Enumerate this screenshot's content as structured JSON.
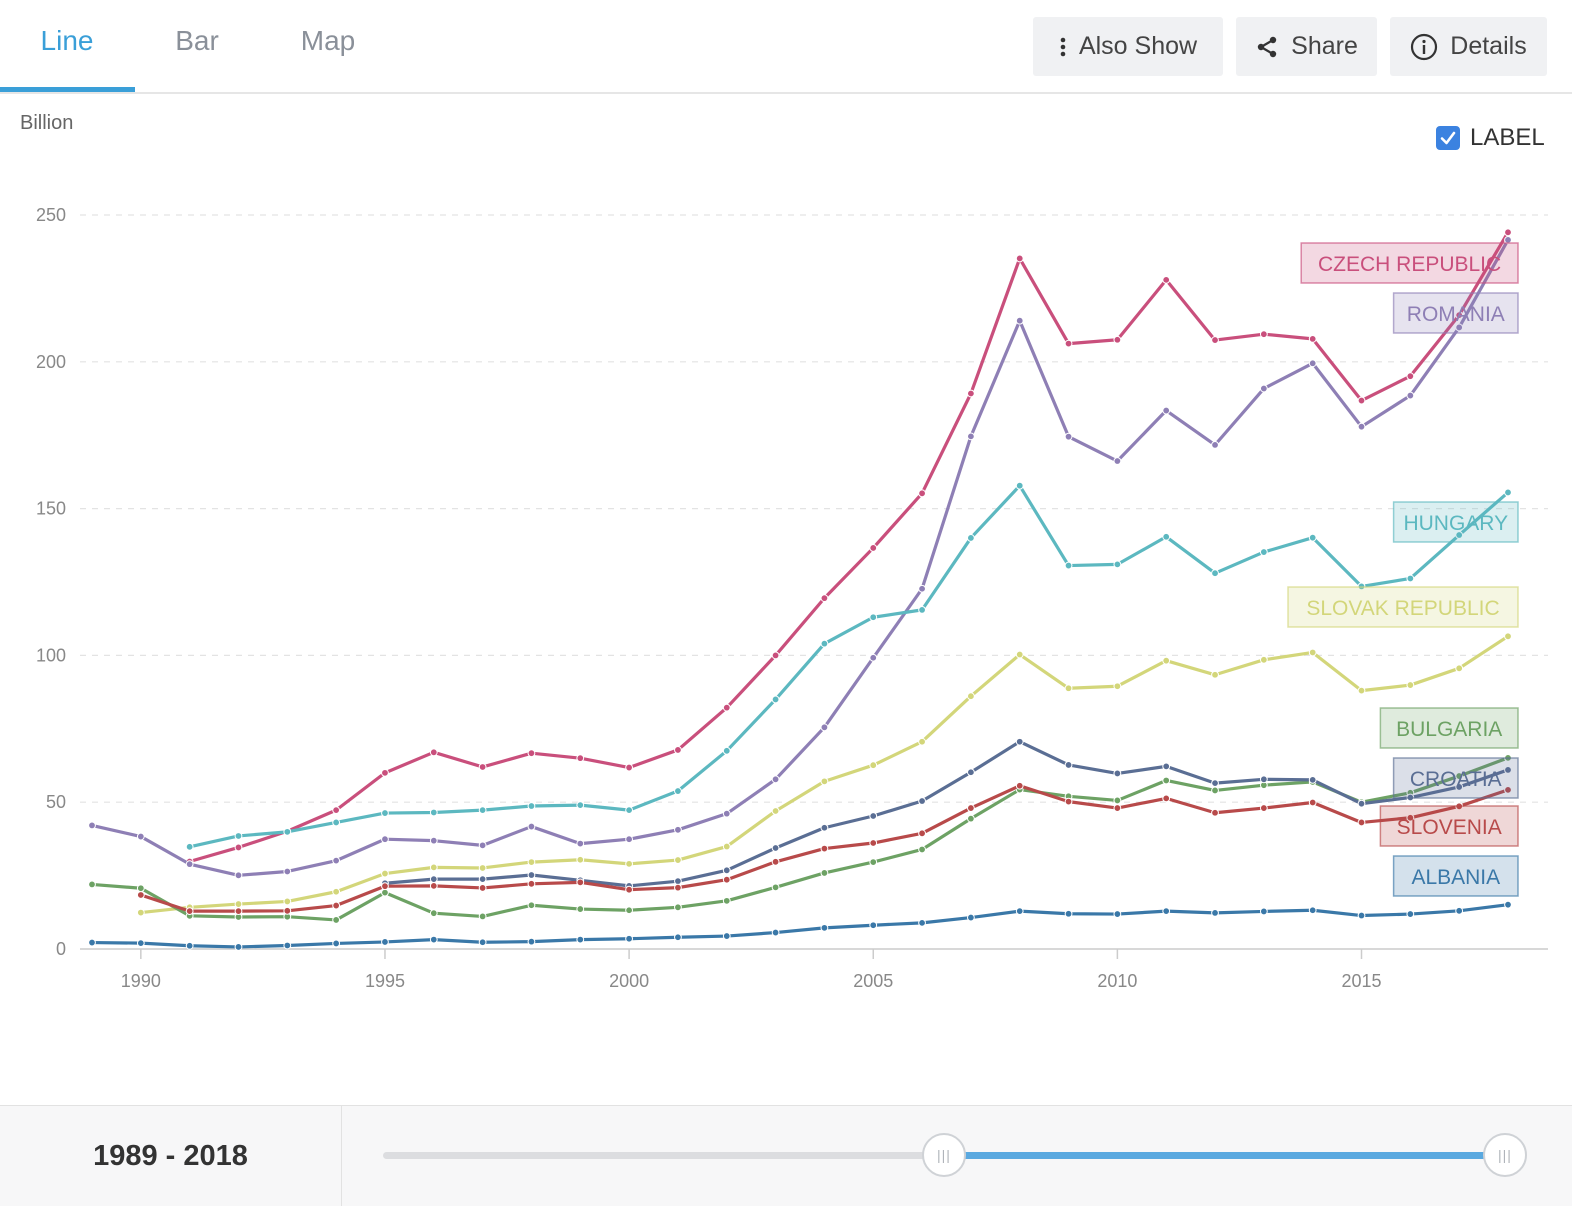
{
  "tabs": [
    {
      "label": "Line",
      "active": true
    },
    {
      "label": "Bar",
      "active": false
    },
    {
      "label": "Map",
      "active": false
    }
  ],
  "toolbar": {
    "also_show": "Also Show",
    "share": "Share",
    "details": "Details",
    "icons": [
      "vertical-dots-icon",
      "share-icon",
      "info-icon"
    ]
  },
  "label_toggle": {
    "label": "LABEL",
    "checked": true,
    "color": "#3b82e0"
  },
  "range": {
    "label": "1989 - 2018",
    "start": 1989,
    "end": 2018
  },
  "slider": {
    "min_year": 1960,
    "max_year": 2018,
    "start_year": 1989,
    "end_year": 2018
  },
  "chart_data": {
    "type": "line",
    "title": "",
    "xlabel": "",
    "ylabel": "Billion",
    "xlim": [
      1989,
      2018
    ],
    "ylim": [
      0,
      250
    ],
    "xticks": [
      1990,
      1995,
      2000,
      2005,
      2010,
      2015
    ],
    "yticks": [
      0,
      50,
      100,
      150,
      200,
      250
    ],
    "grid": true,
    "years": [
      1989,
      1990,
      1991,
      1992,
      1993,
      1994,
      1995,
      1996,
      1997,
      1998,
      1999,
      2000,
      2001,
      2002,
      2003,
      2004,
      2005,
      2006,
      2007,
      2008,
      2009,
      2010,
      2011,
      2012,
      2013,
      2014,
      2015,
      2016,
      2017,
      2018
    ],
    "series": [
      {
        "name": "CZECH REPUBLIC",
        "color": "#c94f7c",
        "values": [
          null,
          null,
          29.8,
          34.6,
          40.1,
          47.3,
          60.0,
          67.0,
          62.0,
          66.7,
          65.0,
          61.8,
          67.8,
          82.2,
          100.0,
          119.5,
          136.6,
          155.2,
          189.2,
          235.2,
          206.2,
          207.5,
          227.9,
          207.4,
          209.4,
          207.8,
          186.8,
          195.1,
          215.9,
          244.1
        ]
      },
      {
        "name": "ROMANIA",
        "color": "#8e7fb5",
        "values": [
          42.1,
          38.3,
          28.9,
          25.1,
          26.4,
          30.1,
          37.4,
          36.9,
          35.3,
          41.7,
          35.9,
          37.4,
          40.6,
          46.1,
          57.8,
          75.5,
          99.2,
          122.7,
          174.6,
          214.0,
          174.5,
          166.2,
          183.4,
          171.7,
          190.9,
          199.5,
          177.9,
          188.5,
          211.7,
          241.5
        ]
      },
      {
        "name": "HUNGARY",
        "color": "#5cb8c0",
        "values": [
          null,
          null,
          34.8,
          38.5,
          39.9,
          43.1,
          46.3,
          46.5,
          47.3,
          48.7,
          49.0,
          47.3,
          53.8,
          67.5,
          85.0,
          104.0,
          113.0,
          115.5,
          140.0,
          157.8,
          130.6,
          131.0,
          140.4,
          128.0,
          135.2,
          140.1,
          123.5,
          126.2,
          141.0,
          155.5
        ]
      },
      {
        "name": "SLOVAK REPUBLIC",
        "color": "#d3d67a",
        "values": [
          null,
          12.4,
          14.2,
          15.3,
          16.2,
          19.5,
          25.7,
          27.8,
          27.6,
          29.6,
          30.4,
          29.0,
          30.3,
          34.9,
          47.0,
          57.1,
          62.6,
          70.6,
          86.1,
          100.3,
          88.8,
          89.5,
          98.2,
          93.4,
          98.5,
          101.0,
          88.0,
          89.9,
          95.6,
          106.5
        ]
      },
      {
        "name": "BULGARIA",
        "color": "#6da264",
        "values": [
          22.0,
          20.7,
          11.3,
          10.9,
          11.0,
          9.9,
          19.2,
          12.2,
          11.1,
          14.9,
          13.6,
          13.2,
          14.2,
          16.4,
          21.0,
          25.9,
          29.6,
          33.9,
          44.4,
          54.3,
          52.0,
          50.6,
          57.4,
          54.0,
          55.8,
          56.9,
          50.0,
          53.2,
          58.9,
          65.1
        ]
      },
      {
        "name": "CROATIA",
        "color": "#5a6e94",
        "values": [
          null,
          null,
          null,
          null,
          null,
          null,
          22.4,
          23.8,
          23.8,
          25.2,
          23.4,
          21.5,
          23.1,
          26.8,
          34.4,
          41.3,
          45.3,
          50.4,
          60.2,
          70.6,
          62.7,
          59.8,
          62.2,
          56.5,
          57.8,
          57.6,
          49.5,
          51.6,
          55.2,
          61.0
        ]
      },
      {
        "name": "SLOVENIA",
        "color": "#b84a4a",
        "values": [
          null,
          18.4,
          12.9,
          12.9,
          13.0,
          14.8,
          21.4,
          21.5,
          20.8,
          22.2,
          22.7,
          20.2,
          20.9,
          23.6,
          29.7,
          34.2,
          36.1,
          39.4,
          48.0,
          55.6,
          50.2,
          48.0,
          51.3,
          46.4,
          48.0,
          49.9,
          43.1,
          44.7,
          48.6,
          54.2
        ]
      },
      {
        "name": "ALBANIA",
        "color": "#3a78a8",
        "values": [
          2.2,
          2.0,
          1.1,
          0.7,
          1.2,
          1.9,
          2.4,
          3.2,
          2.3,
          2.5,
          3.2,
          3.5,
          4.0,
          4.4,
          5.6,
          7.2,
          8.1,
          8.9,
          10.7,
          12.9,
          12.0,
          11.9,
          12.9,
          12.3,
          12.8,
          13.2,
          11.4,
          11.9,
          13.0,
          15.1
        ]
      }
    ]
  }
}
